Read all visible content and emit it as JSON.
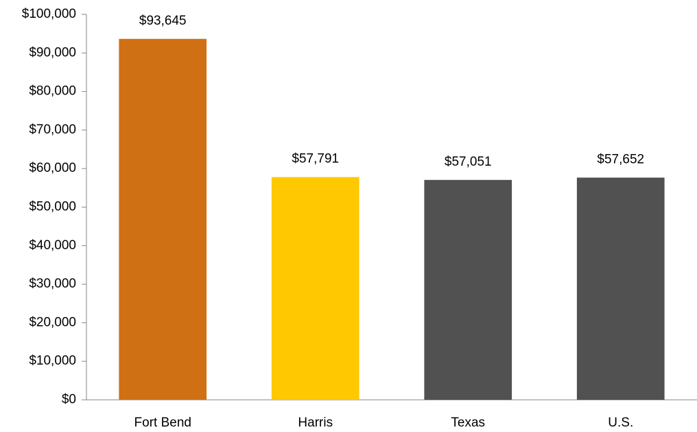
{
  "chart_data": {
    "type": "bar",
    "title": "",
    "xlabel": "",
    "ylabel": "",
    "categories": [
      "Fort Bend",
      "Harris",
      "Texas",
      "U.S."
    ],
    "values": [
      93645,
      57791,
      57051,
      57652
    ],
    "data_labels": [
      "$93,645",
      "$57,791",
      "$57,051",
      "$57,652"
    ],
    "bar_colors": [
      "#D07014",
      "#FFC800",
      "#515151",
      "#515151"
    ],
    "ylim": [
      0,
      100000
    ],
    "y_ticks": [
      0,
      10000,
      20000,
      30000,
      40000,
      50000,
      60000,
      70000,
      80000,
      90000,
      100000
    ],
    "y_tick_labels": [
      "$0",
      "$10,000",
      "$20,000",
      "$30,000",
      "$40,000",
      "$50,000",
      "$60,000",
      "$70,000",
      "$80,000",
      "$90,000",
      "$100,000"
    ],
    "grid": false,
    "legend": "none"
  }
}
